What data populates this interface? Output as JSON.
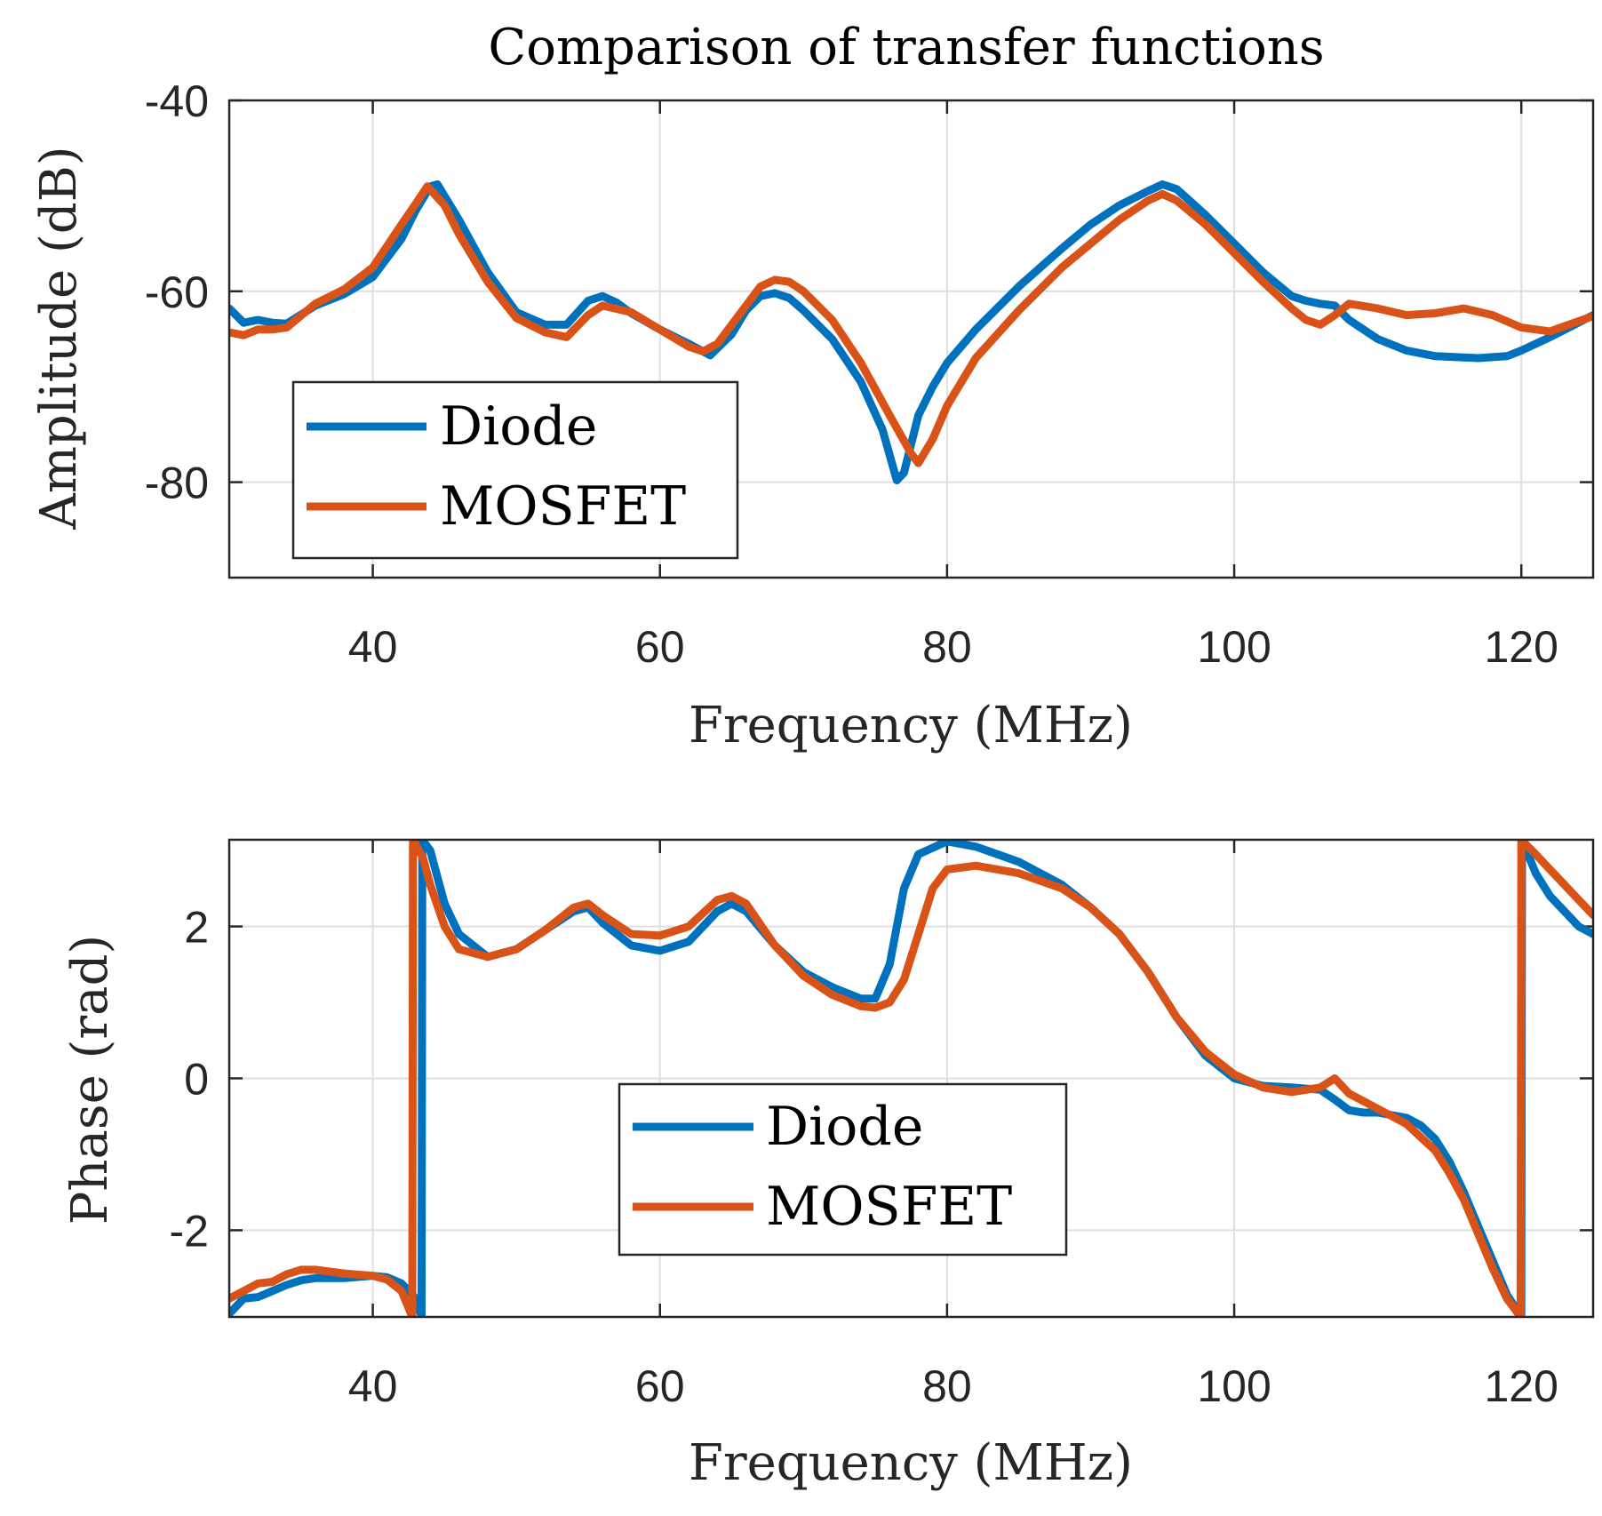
{
  "chart_data": [
    {
      "type": "line",
      "title": "Comparison of transfer functions",
      "xlabel": "Frequency (MHz)",
      "ylabel": "Amplitude (dB)",
      "xlim": [
        30,
        125
      ],
      "ylim": [
        -90,
        -40
      ],
      "xticks": [
        40,
        60,
        80,
        100,
        120
      ],
      "yticks": [
        -40,
        -60,
        -80
      ],
      "xtick_labels": [
        "40",
        "60",
        "80",
        "100",
        "120"
      ],
      "ytick_labels": [
        "-40",
        "-60",
        "-80"
      ],
      "grid": true,
      "legend_position": "bottom-left",
      "series": [
        {
          "name": "Diode",
          "color": "#0072bd",
          "x": [
            30,
            31,
            32,
            33,
            34,
            36,
            38,
            40,
            42,
            43,
            44,
            44.5,
            46,
            48,
            50,
            52,
            53.5,
            55,
            56,
            57,
            58,
            60,
            62,
            63.5,
            65,
            66,
            67,
            68,
            69,
            70,
            72,
            74,
            75.5,
            76.5,
            77,
            78,
            79,
            80,
            82,
            85,
            88,
            90,
            92,
            94,
            95,
            96,
            98,
            100,
            102,
            104,
            105,
            106,
            107,
            108,
            110,
            112,
            114,
            117,
            119,
            120,
            122,
            125
          ],
          "y": [
            -61.8,
            -63.3,
            -63,
            -63.3,
            -63.4,
            -61.5,
            -60.3,
            -58.5,
            -54.5,
            -51.5,
            -49,
            -48.8,
            -52.5,
            -58,
            -62.2,
            -63.5,
            -63.5,
            -61,
            -60.5,
            -61.2,
            -62.3,
            -64,
            -65.5,
            -66.7,
            -64.5,
            -62,
            -60.5,
            -60.2,
            -60.7,
            -62,
            -65,
            -69.5,
            -74.5,
            -79.8,
            -79,
            -73,
            -70,
            -67.5,
            -64,
            -59.5,
            -55.5,
            -53,
            -51,
            -49.5,
            -48.8,
            -49.3,
            -52,
            -55,
            -58,
            -60.5,
            -61,
            -61.3,
            -61.5,
            -63,
            -65,
            -66.2,
            -66.8,
            -67,
            -66.8,
            -66.2,
            -64.8,
            -62.5
          ]
        },
        {
          "name": "MOSFET",
          "color": "#d95319",
          "x": [
            30,
            31,
            32,
            33,
            34,
            36,
            38,
            40,
            42,
            43,
            43.8,
            45,
            46,
            48,
            50,
            52,
            53.5,
            55,
            56,
            58,
            60,
            62,
            63,
            64,
            66,
            67,
            68,
            69,
            70,
            72,
            74,
            76,
            77.5,
            78,
            79,
            80,
            82,
            85,
            88,
            90,
            92,
            94,
            95,
            96,
            98,
            100,
            102,
            104,
            105,
            106,
            107,
            108,
            110,
            112,
            114,
            116,
            118,
            120,
            122,
            125
          ],
          "y": [
            -64.3,
            -64.6,
            -64,
            -64,
            -63.8,
            -61.3,
            -59.8,
            -57.5,
            -53,
            -50.8,
            -49,
            -51,
            -54,
            -59,
            -62.8,
            -64.3,
            -64.8,
            -62.5,
            -61.5,
            -62.2,
            -64,
            -65.8,
            -66.3,
            -65.5,
            -61.5,
            -59.5,
            -58.8,
            -59,
            -60,
            -63,
            -67.5,
            -73,
            -77,
            -78,
            -75.5,
            -72,
            -67,
            -62,
            -57.5,
            -55,
            -52.5,
            -50.5,
            -49.8,
            -50.5,
            -53,
            -56,
            -59,
            -61.8,
            -63,
            -63.5,
            -62.5,
            -61.3,
            -61.8,
            -62.5,
            -62.3,
            -61.8,
            -62.5,
            -63.8,
            -64.2,
            -62.6
          ]
        }
      ]
    },
    {
      "type": "line",
      "title": "",
      "xlabel": "Frequency (MHz)",
      "ylabel": "Phase (rad)",
      "xlim": [
        30,
        125
      ],
      "ylim": [
        -3.1416,
        3.1416
      ],
      "xticks": [
        40,
        60,
        80,
        100,
        120
      ],
      "yticks": [
        2,
        0,
        -2
      ],
      "xtick_labels": [
        "40",
        "60",
        "80",
        "100",
        "120"
      ],
      "ytick_labels": [
        "2",
        "0",
        "-2"
      ],
      "grid": true,
      "legend_position": "bottom-center",
      "series": [
        {
          "name": "Diode",
          "color": "#0072bd",
          "x": [
            30,
            31,
            32,
            33,
            34,
            35,
            36,
            38,
            40,
            41,
            42,
            43,
            43.4,
            43.45,
            44,
            45,
            46,
            48,
            50,
            52,
            54,
            55,
            56,
            58,
            60,
            62,
            64,
            65,
            66,
            68,
            70,
            72,
            74,
            75,
            76,
            77,
            78,
            80,
            82,
            85,
            88,
            90,
            92,
            94,
            96,
            98,
            100,
            102,
            104,
            106,
            107,
            108,
            109,
            110,
            112,
            113,
            114,
            115,
            116,
            117,
            118,
            119,
            120,
            120.05,
            121,
            122,
            123,
            124,
            125
          ],
          "y": [
            -3.1,
            -2.9,
            -2.88,
            -2.8,
            -2.72,
            -2.66,
            -2.63,
            -2.63,
            -2.6,
            -2.62,
            -2.7,
            -2.9,
            -3.14,
            3.14,
            3.0,
            2.3,
            1.9,
            1.6,
            1.7,
            1.95,
            2.2,
            2.25,
            2.05,
            1.75,
            1.68,
            1.8,
            2.2,
            2.3,
            2.2,
            1.75,
            1.4,
            1.2,
            1.05,
            1.05,
            1.5,
            2.5,
            2.95,
            3.12,
            3.05,
            2.85,
            2.55,
            2.25,
            1.9,
            1.4,
            0.8,
            0.3,
            0.0,
            -0.1,
            -0.12,
            -0.15,
            -0.28,
            -0.42,
            -0.45,
            -0.45,
            -0.52,
            -0.62,
            -0.8,
            -1.1,
            -1.5,
            -1.95,
            -2.4,
            -2.85,
            -3.14,
            3.14,
            2.7,
            2.4,
            2.2,
            2.0,
            1.9
          ]
        },
        {
          "name": "MOSFET",
          "color": "#d95319",
          "x": [
            30,
            31,
            32,
            33,
            34,
            35,
            36,
            38,
            40,
            41,
            42,
            42.75,
            42.8,
            43.5,
            44,
            45,
            46,
            48,
            50,
            52,
            54,
            55,
            56,
            58,
            60,
            62,
            64,
            65,
            66,
            68,
            70,
            72,
            74,
            75,
            76,
            77,
            78,
            79,
            80,
            82,
            85,
            88,
            90,
            92,
            94,
            96,
            98,
            100,
            102,
            104,
            106,
            107,
            108,
            110,
            112,
            114,
            115,
            116,
            117,
            118,
            119,
            119.95,
            120,
            121,
            122,
            123,
            124,
            125
          ],
          "y": [
            -2.9,
            -2.8,
            -2.7,
            -2.68,
            -2.58,
            -2.52,
            -2.52,
            -2.57,
            -2.6,
            -2.65,
            -2.8,
            -3.14,
            3.14,
            2.9,
            2.55,
            2.0,
            1.7,
            1.6,
            1.7,
            1.95,
            2.25,
            2.3,
            2.15,
            1.9,
            1.88,
            2.0,
            2.35,
            2.4,
            2.3,
            1.75,
            1.35,
            1.1,
            0.95,
            0.93,
            1.0,
            1.3,
            1.9,
            2.5,
            2.75,
            2.8,
            2.7,
            2.5,
            2.25,
            1.9,
            1.4,
            0.8,
            0.35,
            0.05,
            -0.12,
            -0.18,
            -0.12,
            0.0,
            -0.2,
            -0.4,
            -0.6,
            -0.95,
            -1.25,
            -1.6,
            -2.05,
            -2.5,
            -2.9,
            -3.14,
            3.14,
            2.95,
            2.75,
            2.55,
            2.35,
            2.15
          ]
        }
      ]
    }
  ]
}
